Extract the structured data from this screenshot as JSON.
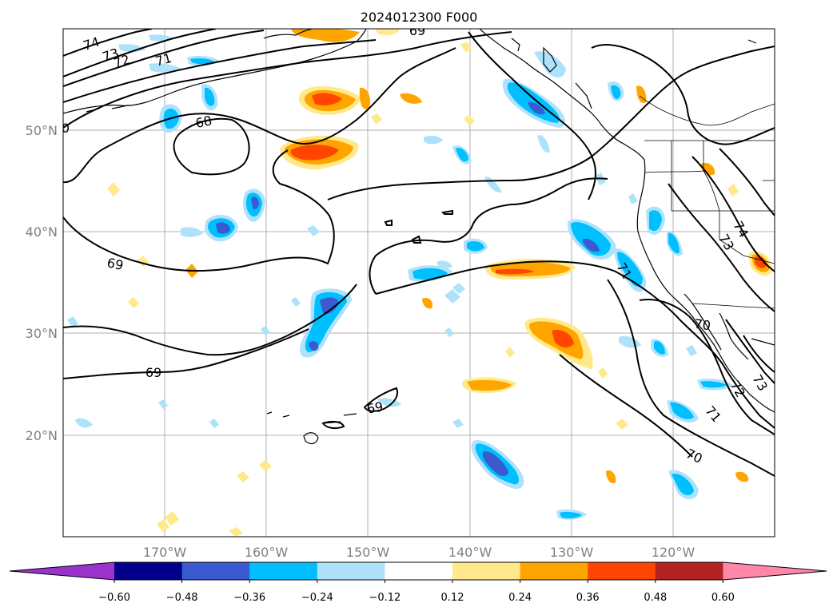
{
  "title": "2024012300 F000",
  "lat_labels": [
    "50°N",
    "40°N",
    "30°N",
    "20°N"
  ],
  "lon_labels": [
    "170°W",
    "160°W",
    "150°W",
    "140°W",
    "130°W",
    "120°W"
  ],
  "colorbar": {
    "tick_labels": [
      "−0.60",
      "−0.48",
      "−0.36",
      "−0.24",
      "−0.12",
      "0.12",
      "0.24",
      "0.36",
      "0.48",
      "0.60"
    ],
    "colors": [
      "#9933cc",
      "#00008b",
      "#3a5bd0",
      "#00bfff",
      "#aee2fb",
      "#ffffff",
      "#ffe98a",
      "#ffa500",
      "#ff4500",
      "#b22222",
      "#ff88aa"
    ]
  },
  "contour_labels": [
    "74",
    "73",
    "72",
    "71",
    "68",
    "0",
    "69",
    "69",
    "69",
    "69",
    "71",
    "73",
    "74",
    "70",
    "72",
    "73",
    "71",
    "70"
  ],
  "colors": {
    "contour": "#000000",
    "grid": "#b0b0b0",
    "axis_labels": "#808080"
  }
}
